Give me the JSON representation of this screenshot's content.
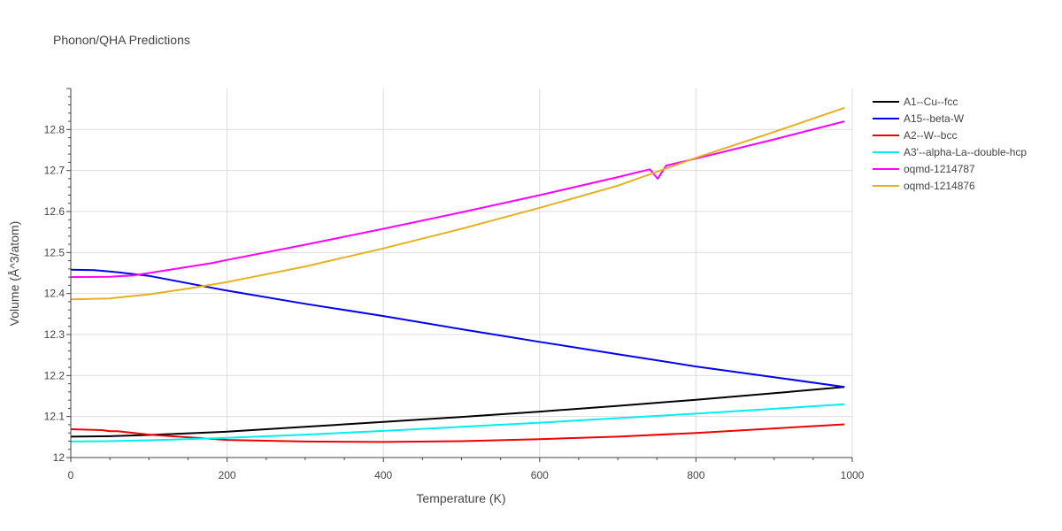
{
  "chart_data": {
    "type": "line",
    "title": "Phonon/QHA Predictions",
    "xlabel": "Temperature (K)",
    "ylabel": "Volume (Å^3/atom)",
    "xlim": [
      0,
      1000
    ],
    "ylim": [
      12,
      12.9
    ],
    "x_ticks": [
      0,
      200,
      400,
      600,
      800,
      1000
    ],
    "y_ticks": [
      12,
      12.1,
      12.2,
      12.3,
      12.4,
      12.5,
      12.6,
      12.7,
      12.8
    ],
    "x_tick_labels": [
      "0",
      "200",
      "400",
      "600",
      "800",
      "1000"
    ],
    "y_tick_labels": [
      "12",
      "12.1",
      "12.2",
      "12.3",
      "12.4",
      "12.5",
      "12.6",
      "12.7",
      "12.8"
    ],
    "grid": true,
    "legend_position": "top-right",
    "series": [
      {
        "name": "A1--Cu--fcc",
        "color": "#000000",
        "x": [
          0,
          50,
          100,
          200,
          300,
          400,
          500,
          600,
          700,
          800,
          900,
          990
        ],
        "y": [
          12.051,
          12.052,
          12.055,
          12.063,
          12.075,
          12.087,
          12.099,
          12.112,
          12.126,
          12.141,
          12.157,
          12.172
        ]
      },
      {
        "name": "A15--beta-W",
        "color": "#0000ee",
        "x": [
          0,
          30,
          60,
          100,
          200,
          300,
          400,
          500,
          600,
          700,
          800,
          900,
          990
        ],
        "y": [
          12.458,
          12.457,
          12.452,
          12.443,
          12.407,
          12.375,
          12.345,
          12.313,
          12.282,
          12.252,
          12.222,
          12.196,
          12.172
        ]
      },
      {
        "name": "A2--W--bcc",
        "color": "#ee0000",
        "x": [
          0,
          40,
          50,
          60,
          100,
          200,
          300,
          400,
          500,
          600,
          700,
          800,
          900,
          990
        ],
        "y": [
          12.069,
          12.067,
          12.064,
          12.064,
          12.056,
          12.043,
          12.039,
          12.038,
          12.04,
          12.045,
          12.051,
          12.06,
          12.071,
          12.081
        ]
      },
      {
        "name": "A3'--alpha-La--double-hcp",
        "color": "#00eeee",
        "x": [
          0,
          50,
          100,
          200,
          300,
          400,
          500,
          600,
          700,
          800,
          900,
          990
        ],
        "y": [
          12.039,
          12.04,
          12.042,
          12.048,
          12.056,
          12.065,
          12.075,
          12.085,
          12.096,
          12.107,
          12.119,
          12.13
        ]
      },
      {
        "name": "oqmd-1214787",
        "color": "#ff00ff",
        "x": [
          0,
          50,
          80,
          100,
          180,
          200,
          300,
          400,
          500,
          600,
          700,
          741,
          751,
          762,
          800,
          900,
          990
        ],
        "y": [
          12.44,
          12.441,
          12.444,
          12.45,
          12.474,
          12.482,
          12.519,
          12.558,
          12.598,
          12.64,
          12.684,
          12.703,
          12.68,
          12.712,
          12.729,
          12.776,
          12.82
        ]
      },
      {
        "name": "oqmd-1214876",
        "color": "#e6b020",
        "x": [
          0,
          50,
          100,
          150,
          200,
          300,
          400,
          500,
          600,
          700,
          800,
          900,
          990
        ],
        "y": [
          12.386,
          12.388,
          12.398,
          12.412,
          12.428,
          12.466,
          12.51,
          12.558,
          12.609,
          12.663,
          12.731,
          12.794,
          12.853
        ]
      }
    ]
  }
}
